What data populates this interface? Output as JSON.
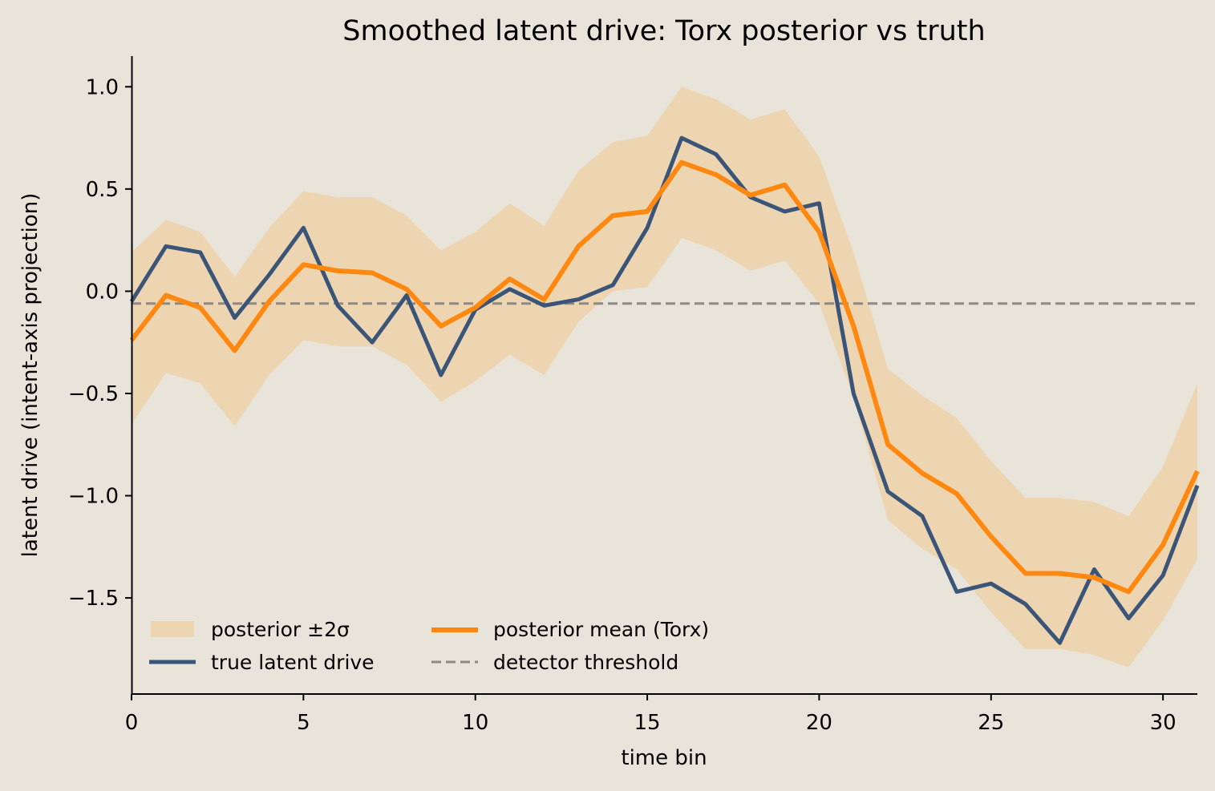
{
  "chart_data": {
    "type": "line",
    "title": "Smoothed latent drive: Torx posterior vs truth",
    "xlabel": "time bin",
    "ylabel": "latent drive (intent-axis projection)",
    "xlim": [
      0,
      31
    ],
    "ylim": [
      -1.97,
      1.15
    ],
    "xticks": [
      0,
      5,
      10,
      15,
      20,
      25,
      30
    ],
    "xtick_labels": [
      "0",
      "5",
      "10",
      "15",
      "20",
      "25",
      "30"
    ],
    "yticks": [
      1.0,
      0.5,
      0.0,
      -0.5,
      -1.0,
      -1.5
    ],
    "ytick_labels": [
      "1.0",
      "0.5",
      "0.0",
      "−0.5",
      "−1.0",
      "−1.5"
    ],
    "grid": false,
    "legend_position": "bottom-left",
    "x": [
      0,
      1,
      2,
      3,
      4,
      5,
      6,
      7,
      8,
      9,
      10,
      11,
      12,
      13,
      14,
      15,
      16,
      17,
      18,
      19,
      20,
      21,
      22,
      23,
      24,
      25,
      26,
      27,
      28,
      29,
      30,
      31
    ],
    "series": [
      {
        "name": "true latent drive",
        "kind": "line",
        "color": "#3b5579",
        "values": [
          -0.05,
          0.22,
          0.19,
          -0.13,
          0.08,
          0.31,
          -0.07,
          -0.25,
          -0.02,
          -0.41,
          -0.09,
          0.01,
          -0.07,
          -0.04,
          0.03,
          0.31,
          0.75,
          0.67,
          0.46,
          0.39,
          0.43,
          -0.5,
          -0.98,
          -1.1,
          -1.47,
          -1.43,
          -1.53,
          -1.72,
          -1.36,
          -1.6,
          -1.39,
          -0.95
        ]
      },
      {
        "name": "posterior mean (Torx)",
        "kind": "line",
        "color": "#ff8811",
        "values": [
          -0.24,
          -0.02,
          -0.08,
          -0.29,
          -0.05,
          0.13,
          0.1,
          0.09,
          0.01,
          -0.17,
          -0.08,
          0.06,
          -0.04,
          0.22,
          0.37,
          0.39,
          0.63,
          0.57,
          0.47,
          0.52,
          0.29,
          -0.17,
          -0.75,
          -0.89,
          -0.99,
          -1.2,
          -1.38,
          -1.38,
          -1.4,
          -1.47,
          -1.24,
          -0.88
        ]
      },
      {
        "name": "posterior ±2σ",
        "kind": "band",
        "color": "#eed5b2",
        "lower": [
          -0.65,
          -0.4,
          -0.45,
          -0.66,
          -0.41,
          -0.24,
          -0.27,
          -0.27,
          -0.36,
          -0.54,
          -0.44,
          -0.31,
          -0.41,
          -0.15,
          0.0,
          0.02,
          0.26,
          0.2,
          0.1,
          0.15,
          -0.06,
          -0.52,
          -1.12,
          -1.26,
          -1.36,
          -1.57,
          -1.75,
          -1.75,
          -1.78,
          -1.84,
          -1.61,
          -1.31
        ],
        "upper": [
          0.19,
          0.35,
          0.29,
          0.07,
          0.31,
          0.49,
          0.46,
          0.46,
          0.37,
          0.2,
          0.29,
          0.43,
          0.32,
          0.59,
          0.73,
          0.76,
          1.0,
          0.94,
          0.84,
          0.89,
          0.66,
          0.19,
          -0.38,
          -0.51,
          -0.62,
          -0.83,
          -1.01,
          -1.01,
          -1.03,
          -1.1,
          -0.86,
          -0.45
        ]
      },
      {
        "name": "detector threshold",
        "kind": "hline",
        "color": "#8e8a83",
        "y": -0.06
      }
    ]
  }
}
